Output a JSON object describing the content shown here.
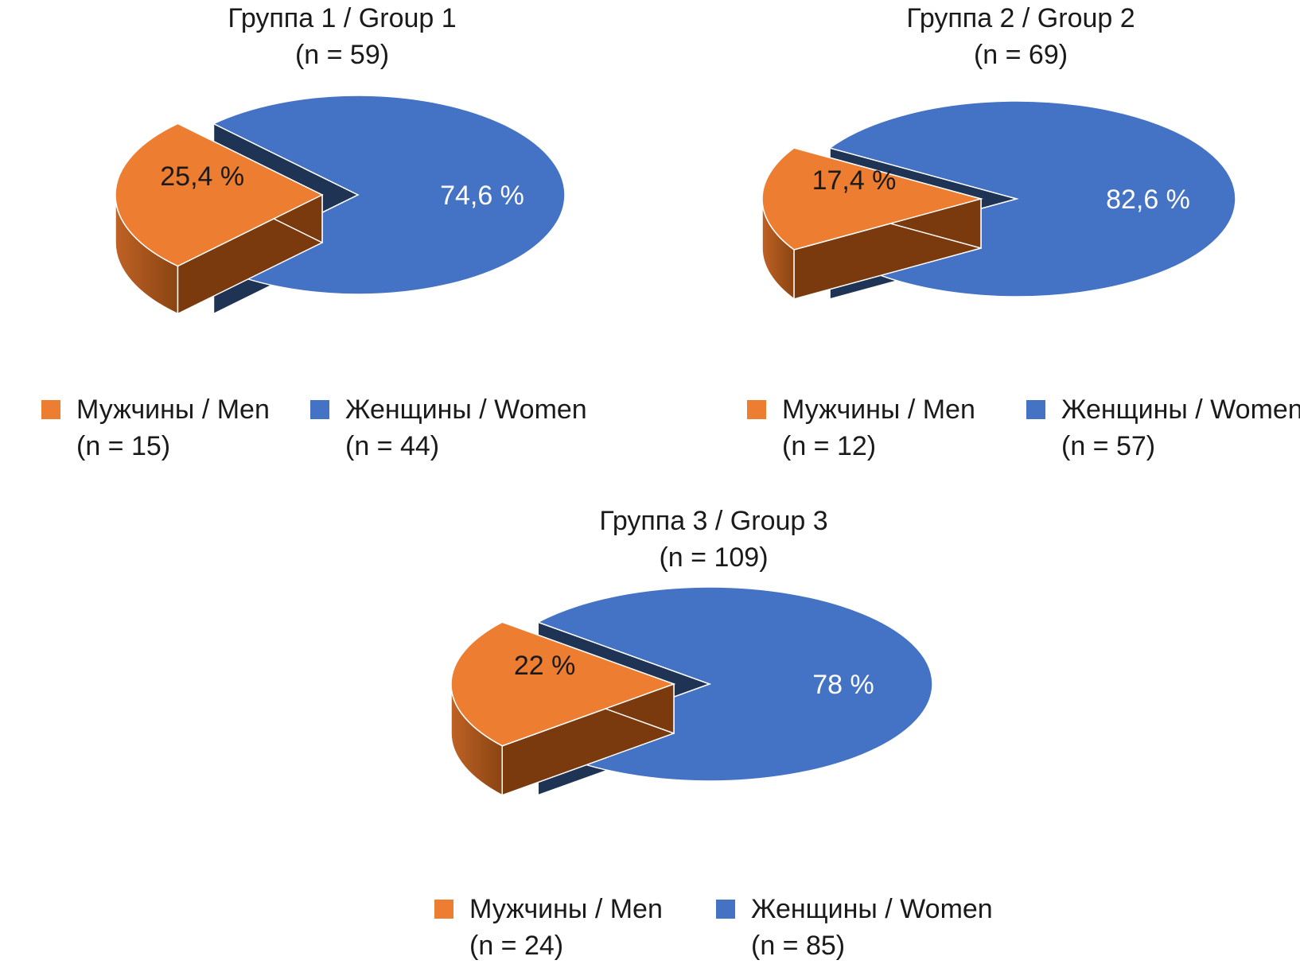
{
  "colors": {
    "men": "#ED7D31",
    "women": "#4472C4",
    "men_side": "#A5521B",
    "women_side": "#2A4677"
  },
  "chart_data": [
    {
      "type": "pie",
      "title": "Группа 1 / Group 1",
      "subtitle": "(n = 59)",
      "series": [
        {
          "name": "Мужчины / Men",
          "count_label": "(n = 15)",
          "value": 25.4,
          "label": "25,4 %"
        },
        {
          "name": "Женщины / Women",
          "count_label": "(n = 44)",
          "value": 74.6,
          "label": "74,6 %"
        }
      ],
      "legend": "bottom"
    },
    {
      "type": "pie",
      "title": "Группа 2 / Group 2",
      "subtitle": "(n = 69)",
      "series": [
        {
          "name": "Мужчины / Men",
          "count_label": "(n = 12)",
          "value": 17.4,
          "label": "17,4 %"
        },
        {
          "name": "Женщины / Women",
          "count_label": "(n = 57)",
          "value": 82.6,
          "label": "82,6 %"
        }
      ],
      "legend": "bottom"
    },
    {
      "type": "pie",
      "title": "Группа 3 / Group 3",
      "subtitle": "(n = 109)",
      "series": [
        {
          "name": "Мужчины / Men",
          "count_label": "(n = 24)",
          "value": 22,
          "label": "22 %"
        },
        {
          "name": "Женщины / Women",
          "count_label": "(n = 85)",
          "value": 78,
          "label": "78 %"
        }
      ],
      "legend": "bottom"
    }
  ]
}
